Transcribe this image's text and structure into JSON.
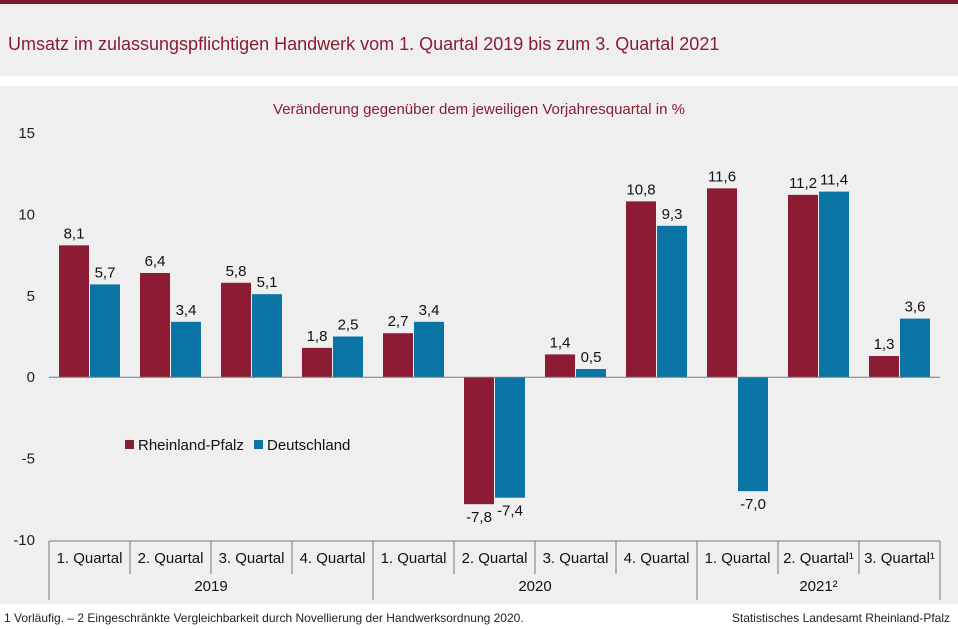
{
  "title": "Umsatz im zulassungspflichtigen Handwerk vom 1. Quartal 2019 bis zum 3. Quartal 2021",
  "subtitle": "Veränderung gegenüber dem jeweiligen Vorjahresquartal in %",
  "footnote": "1 Vorläufig. – 2 Eingeschränkte Vergleichbarkeit durch Novellierung der Handwerksordnung 2020.",
  "source": "Statistisches Landesamt Rheinland-Pfalz",
  "colors": {
    "rlp": "#8b1c33",
    "de": "#0a74a4",
    "accent": "#8b1c33"
  },
  "chart_data": {
    "type": "bar",
    "categories": [
      "1. Quartal",
      "2. Quartal",
      "3. Quartal",
      "4. Quartal",
      "1. Quartal",
      "2. Quartal",
      "3. Quartal",
      "4. Quartal",
      "1. Quartal",
      "2. Quartal¹",
      "3. Quartal¹"
    ],
    "groups": [
      {
        "label": "2019",
        "count": 4
      },
      {
        "label": "2020",
        "count": 4
      },
      {
        "label": "2021²",
        "count": 3
      }
    ],
    "series": [
      {
        "name": "Rheinland-Pfalz",
        "values": [
          8.1,
          6.4,
          5.8,
          1.8,
          2.7,
          -7.8,
          1.4,
          10.8,
          11.6,
          11.2,
          1.3
        ],
        "labels": [
          "8,1",
          "6,4",
          "5,8",
          "1,8",
          "2,7",
          "-7,8",
          "1,4",
          "10,8",
          "11,6",
          "11,2",
          "1,3"
        ]
      },
      {
        "name": "Deutschland",
        "values": [
          5.7,
          3.4,
          5.1,
          2.5,
          3.4,
          -7.4,
          0.5,
          9.3,
          -7.0,
          11.4,
          3.6
        ],
        "labels": [
          "5,7",
          "3,4",
          "5,1",
          "2,5",
          "3,4",
          "-7,4",
          "0,5",
          "9,3",
          "-7,0",
          "11,4",
          "3,6"
        ]
      }
    ],
    "ylim": [
      -10,
      15
    ],
    "yticks": [
      15,
      10,
      5,
      0,
      -5,
      -10
    ],
    "legend_position": "middle-left",
    "grid": false
  }
}
